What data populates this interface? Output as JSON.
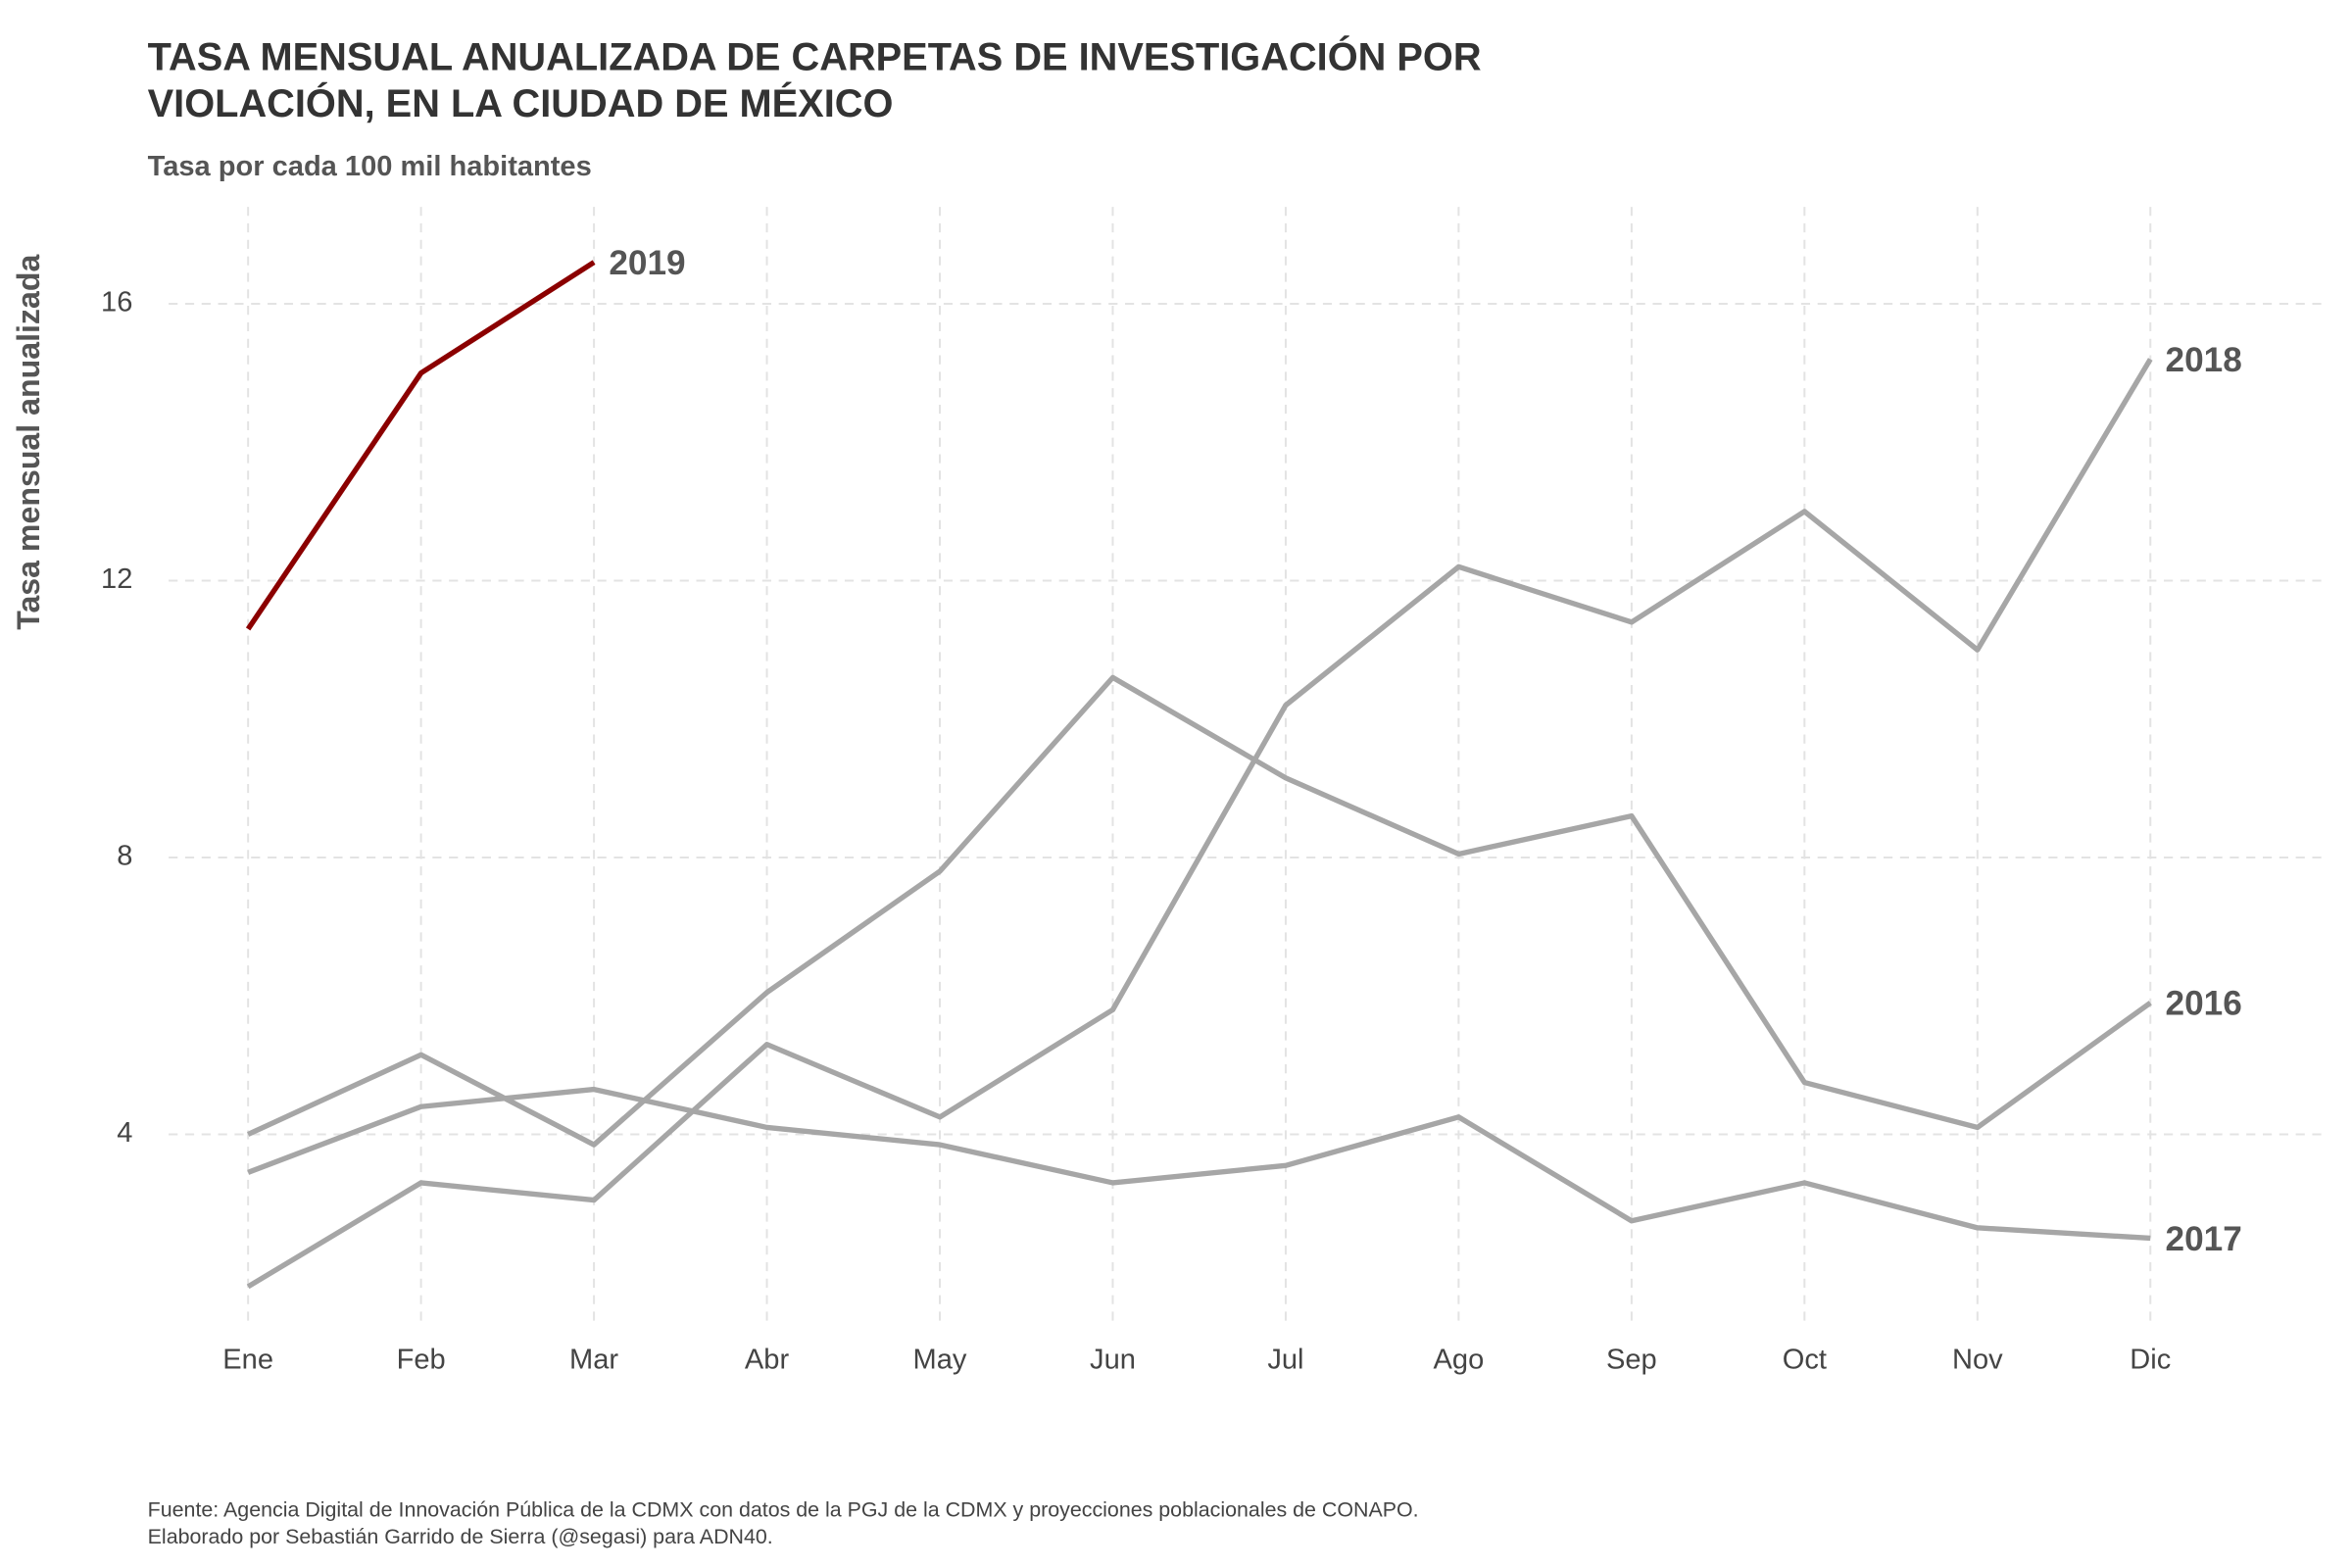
{
  "chart_data": {
    "type": "line",
    "title": [
      "TASA MENSUAL ANUALIZADA DE CARPETAS DE INVESTIGACIÓN POR",
      "VIOLACIÓN, EN LA CIUDAD DE MÉXICO"
    ],
    "subtitle": "Tasa por cada 100 mil habitantes",
    "y_label": "Tasa mensual anualizada",
    "caption": [
      "Fuente: Agencia Digital de Innovación Pública de la CDMX con datos de la PGJ de la CDMX y proyecciones poblacionales de CONAPO.",
      "Elaborado por Sebastián Garrido de Sierra (@segasi) para ADN40."
    ],
    "categories": [
      "Ene",
      "Feb",
      "Mar",
      "Abr",
      "May",
      "Jun",
      "Jul",
      "Ago",
      "Sep",
      "Oct",
      "Nov",
      "Dic"
    ],
    "series": [
      {
        "name": "2016",
        "color": "#a6a6a6",
        "values": [
          4.0,
          5.15,
          3.85,
          6.05,
          7.8,
          10.6,
          9.15,
          8.05,
          8.6,
          4.75,
          4.1,
          5.9
        ]
      },
      {
        "name": "2017",
        "color": "#a6a6a6",
        "values": [
          3.45,
          4.4,
          4.65,
          4.1,
          3.85,
          3.3,
          3.55,
          4.25,
          2.75,
          3.3,
          2.65,
          2.5
        ]
      },
      {
        "name": "2018",
        "color": "#a6a6a6",
        "values": [
          1.8,
          3.3,
          3.05,
          5.3,
          4.25,
          5.8,
          10.2,
          12.2,
          11.4,
          13.0,
          11.0,
          15.2
        ]
      },
      {
        "name": "2019",
        "color": "#8b0000",
        "values": [
          11.3,
          15.0,
          16.6,
          null,
          null,
          null,
          null,
          null,
          null,
          null,
          null,
          null
        ]
      }
    ],
    "ylim": [
      1.2,
      17.4
    ],
    "yticks": [
      4,
      8,
      12,
      16
    ],
    "grid": true
  }
}
